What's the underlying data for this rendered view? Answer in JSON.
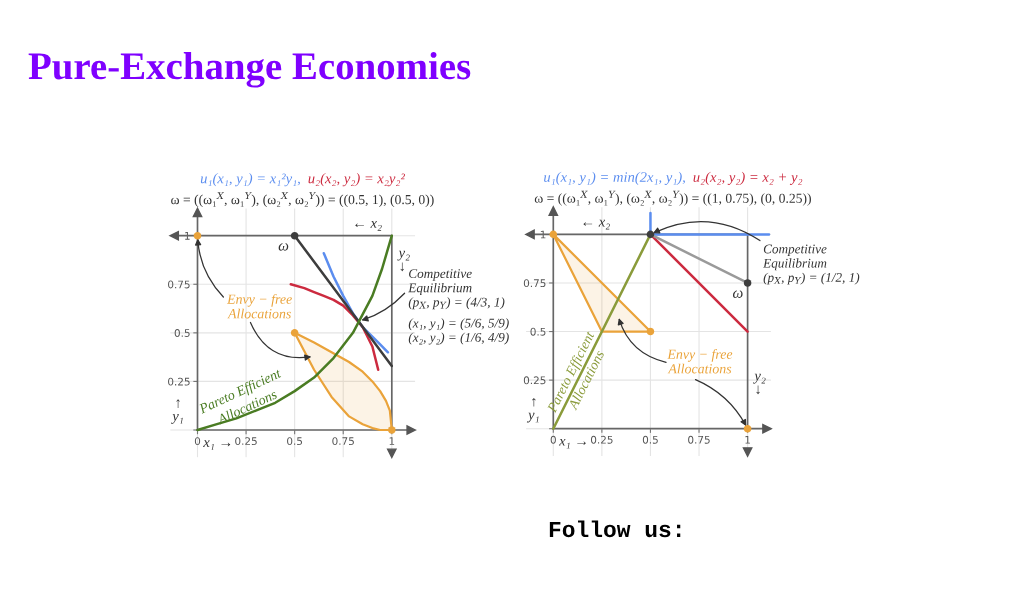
{
  "chart_data": [
    {
      "type": "other",
      "title": "Pure-Exchange Economies",
      "annotations": [
        "Follow us:"
      ]
    },
    {
      "type": "line",
      "subtitle": "ω = ((ω₁$^{X}$, ω₁$^{Y}$), (ω₂$^{X}$, ω₂$^{Y}$)) = ((0.5, 1), (0.5, 0))",
      "xlabel": "x₁ →",
      "ylabel": "↑\ny₁",
      "x2label": "← x₂",
      "y2label": "y₂\n↓",
      "xlim": [
        -0.14,
        1.12
      ],
      "ylim": [
        -0.14,
        1.14
      ],
      "xticks": [
        0,
        0.25,
        0.5,
        0.75,
        1
      ],
      "yticks": [
        {
          "value": 0,
          "label": null
        },
        0.25,
        0.5,
        0.75,
        1
      ],
      "grid": true,
      "legend": "top",
      "series": [
        {
          "name": "u₁(x₁, y₁) = x₁²y₁,",
          "type": "line",
          "color": "#5b8def",
          "x": [
            0.65,
            0.7,
            0.75,
            0.8,
            0.85,
            0.9,
            0.95,
            0.98
          ],
          "values": [
            0.91,
            0.79,
            0.69,
            0.6,
            0.53,
            0.48,
            0.43,
            0.4
          ]
        },
        {
          "name": "u₂(x₂, y₂) = x₂y₂²",
          "type": "line",
          "color": "#cc2a3f",
          "x": [
            0.48,
            0.55,
            0.6,
            0.65,
            0.7,
            0.75,
            0.8,
            0.85,
            0.9,
            0.93
          ],
          "values": [
            0.75,
            0.73,
            0.71,
            0.69,
            0.67,
            0.64,
            0.59,
            0.53,
            0.43,
            0.31
          ]
        },
        {
          "type": "line",
          "color": "#3d3d3d",
          "x": [
            0.5,
            1
          ],
          "values": [
            1,
            0.33
          ]
        },
        {
          "type": "line",
          "color": "#4a7c23",
          "x": [
            0,
            0.1,
            0.2,
            0.3,
            0.4,
            0.5,
            0.6,
            0.7,
            0.8,
            0.9,
            0.95,
            1
          ],
          "values": [
            0,
            0.03,
            0.06,
            0.1,
            0.14,
            0.2,
            0.27,
            0.37,
            0.5,
            0.69,
            0.83,
            1
          ]
        },
        {
          "type": "area",
          "color": "#eaa33a",
          "x": [
            0.5,
            0.6,
            0.69,
            0.78,
            0.85,
            0.9,
            0.94,
            0.97,
            0.99,
            1,
            0.94,
            0.9,
            0.85,
            0.78,
            0.69,
            0.6
          ],
          "values": [
            0.5,
            0.45,
            0.4,
            0.35,
            0.3,
            0.25,
            0.2,
            0.15,
            0.1,
            0,
            0,
            0.01,
            0.03,
            0.07,
            0.17,
            0.31
          ]
        },
        {
          "type": "scatter",
          "color": "#eaa33a",
          "marker": "circle",
          "x": [
            0,
            0.5,
            1
          ],
          "values": [
            1,
            0.5,
            0
          ]
        },
        {
          "type": "scatter",
          "color": "#3d3d3d",
          "marker": "circle",
          "x": [
            0.5
          ],
          "values": [
            1
          ]
        }
      ],
      "annotations": [
        {
          "text": "ω",
          "x": 0.5,
          "y": 1
        },
        {
          "text": "Competitive\nEquilibrium\n(p$_{X}$, p$_{Y}$) = (4/3, 1)",
          "x": 0.83,
          "y": 0.56
        },
        "(x₁, y₁) = (5/6, 5/9)\n(x₂, y₂) = (1/6, 4/9)",
        {
          "text": "Envy − free\nAllocations",
          "x": 0,
          "y": 1
        },
        "Pareto Efficient\nAllocations"
      ]
    },
    {
      "type": "line",
      "subtitle": "ω = ((ω₁$^{X}$, ω₁$^{Y}$), (ω₂$^{X}$, ω₂$^{Y}$)) = ((1, 0.75), (0, 0.25))",
      "xlabel": "x₁ →",
      "ylabel": "↑\ny₁",
      "x2label": "← x₂",
      "y2label": "y₂\n↓",
      "xlim": [
        -0.14,
        1.12
      ],
      "ylim": [
        -0.14,
        1.14
      ],
      "xticks": [
        0,
        0.25,
        0.5,
        0.75,
        1
      ],
      "yticks": [
        {
          "value": 0,
          "label": null
        },
        0.25,
        0.5,
        0.75,
        1
      ],
      "grid": true,
      "legend": "top",
      "series": [
        {
          "name": "u₁(x₁, y₁) = min(2x₁, y₁),",
          "type": "line",
          "color": "#5b8def",
          "x": [
            0.5,
            0.5,
            1.11
          ],
          "values": [
            1.11,
            1,
            1
          ]
        },
        {
          "name": "u₂(x₂, y₂) = x₂ + y₂",
          "type": "line",
          "color": "#cc2a3f",
          "x": [
            0.5,
            1
          ],
          "values": [
            1,
            0.5
          ]
        },
        {
          "type": "line",
          "color": "#9a9a9a",
          "x": [
            0.5,
            1
          ],
          "values": [
            1,
            0.75
          ]
        },
        {
          "type": "line",
          "color": "#8a9b3a",
          "x": [
            0,
            0.5
          ],
          "values": [
            0,
            1
          ]
        },
        {
          "type": "area",
          "color": "#eaa33a",
          "x": [
            0,
            0.5,
            0.25
          ],
          "values": [
            1,
            0.5,
            0.5
          ]
        },
        {
          "type": "scatter",
          "color": "#eaa33a",
          "marker": "circle",
          "x": [
            0,
            0.5,
            1
          ],
          "values": [
            1,
            0.5,
            0
          ]
        },
        {
          "type": "scatter",
          "color": "#3d3d3d",
          "marker": "circle",
          "x": [
            0.5,
            1
          ],
          "values": [
            1,
            0.75
          ]
        }
      ],
      "annotations": [
        {
          "text": "ω",
          "x": 1,
          "y": 0.75
        },
        {
          "text": "Competitive\nEquilibrium\n(p$_{X}$, p$_{Y}$) = (1/2, 1)",
          "x": 0.5,
          "y": 1
        },
        {
          "text": "Envy − free\nAllocations",
          "x": 1,
          "y": 0
        },
        "Pareto Efficient\nAllocations"
      ]
    }
  ]
}
